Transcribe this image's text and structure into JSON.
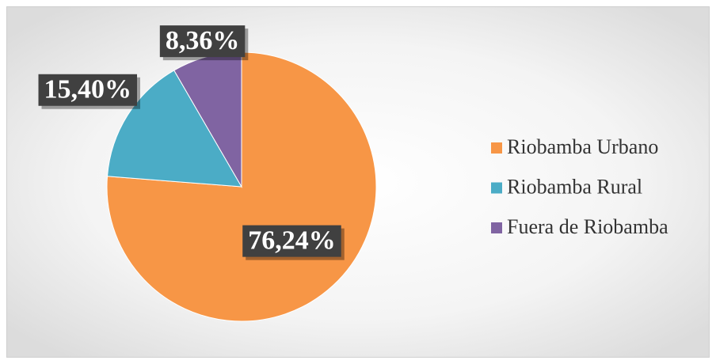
{
  "chart_data": {
    "type": "pie",
    "categories": [
      "Riobamba Urbano",
      "Riobamba Rural",
      "Fuera de Riobamba"
    ],
    "values": [
      76.24,
      15.4,
      8.36
    ],
    "value_labels": [
      "76,24%",
      "15,40%",
      "8,36%"
    ],
    "colors": [
      "#F79646",
      "#4BACC6",
      "#8064A2"
    ],
    "legend": "right"
  }
}
